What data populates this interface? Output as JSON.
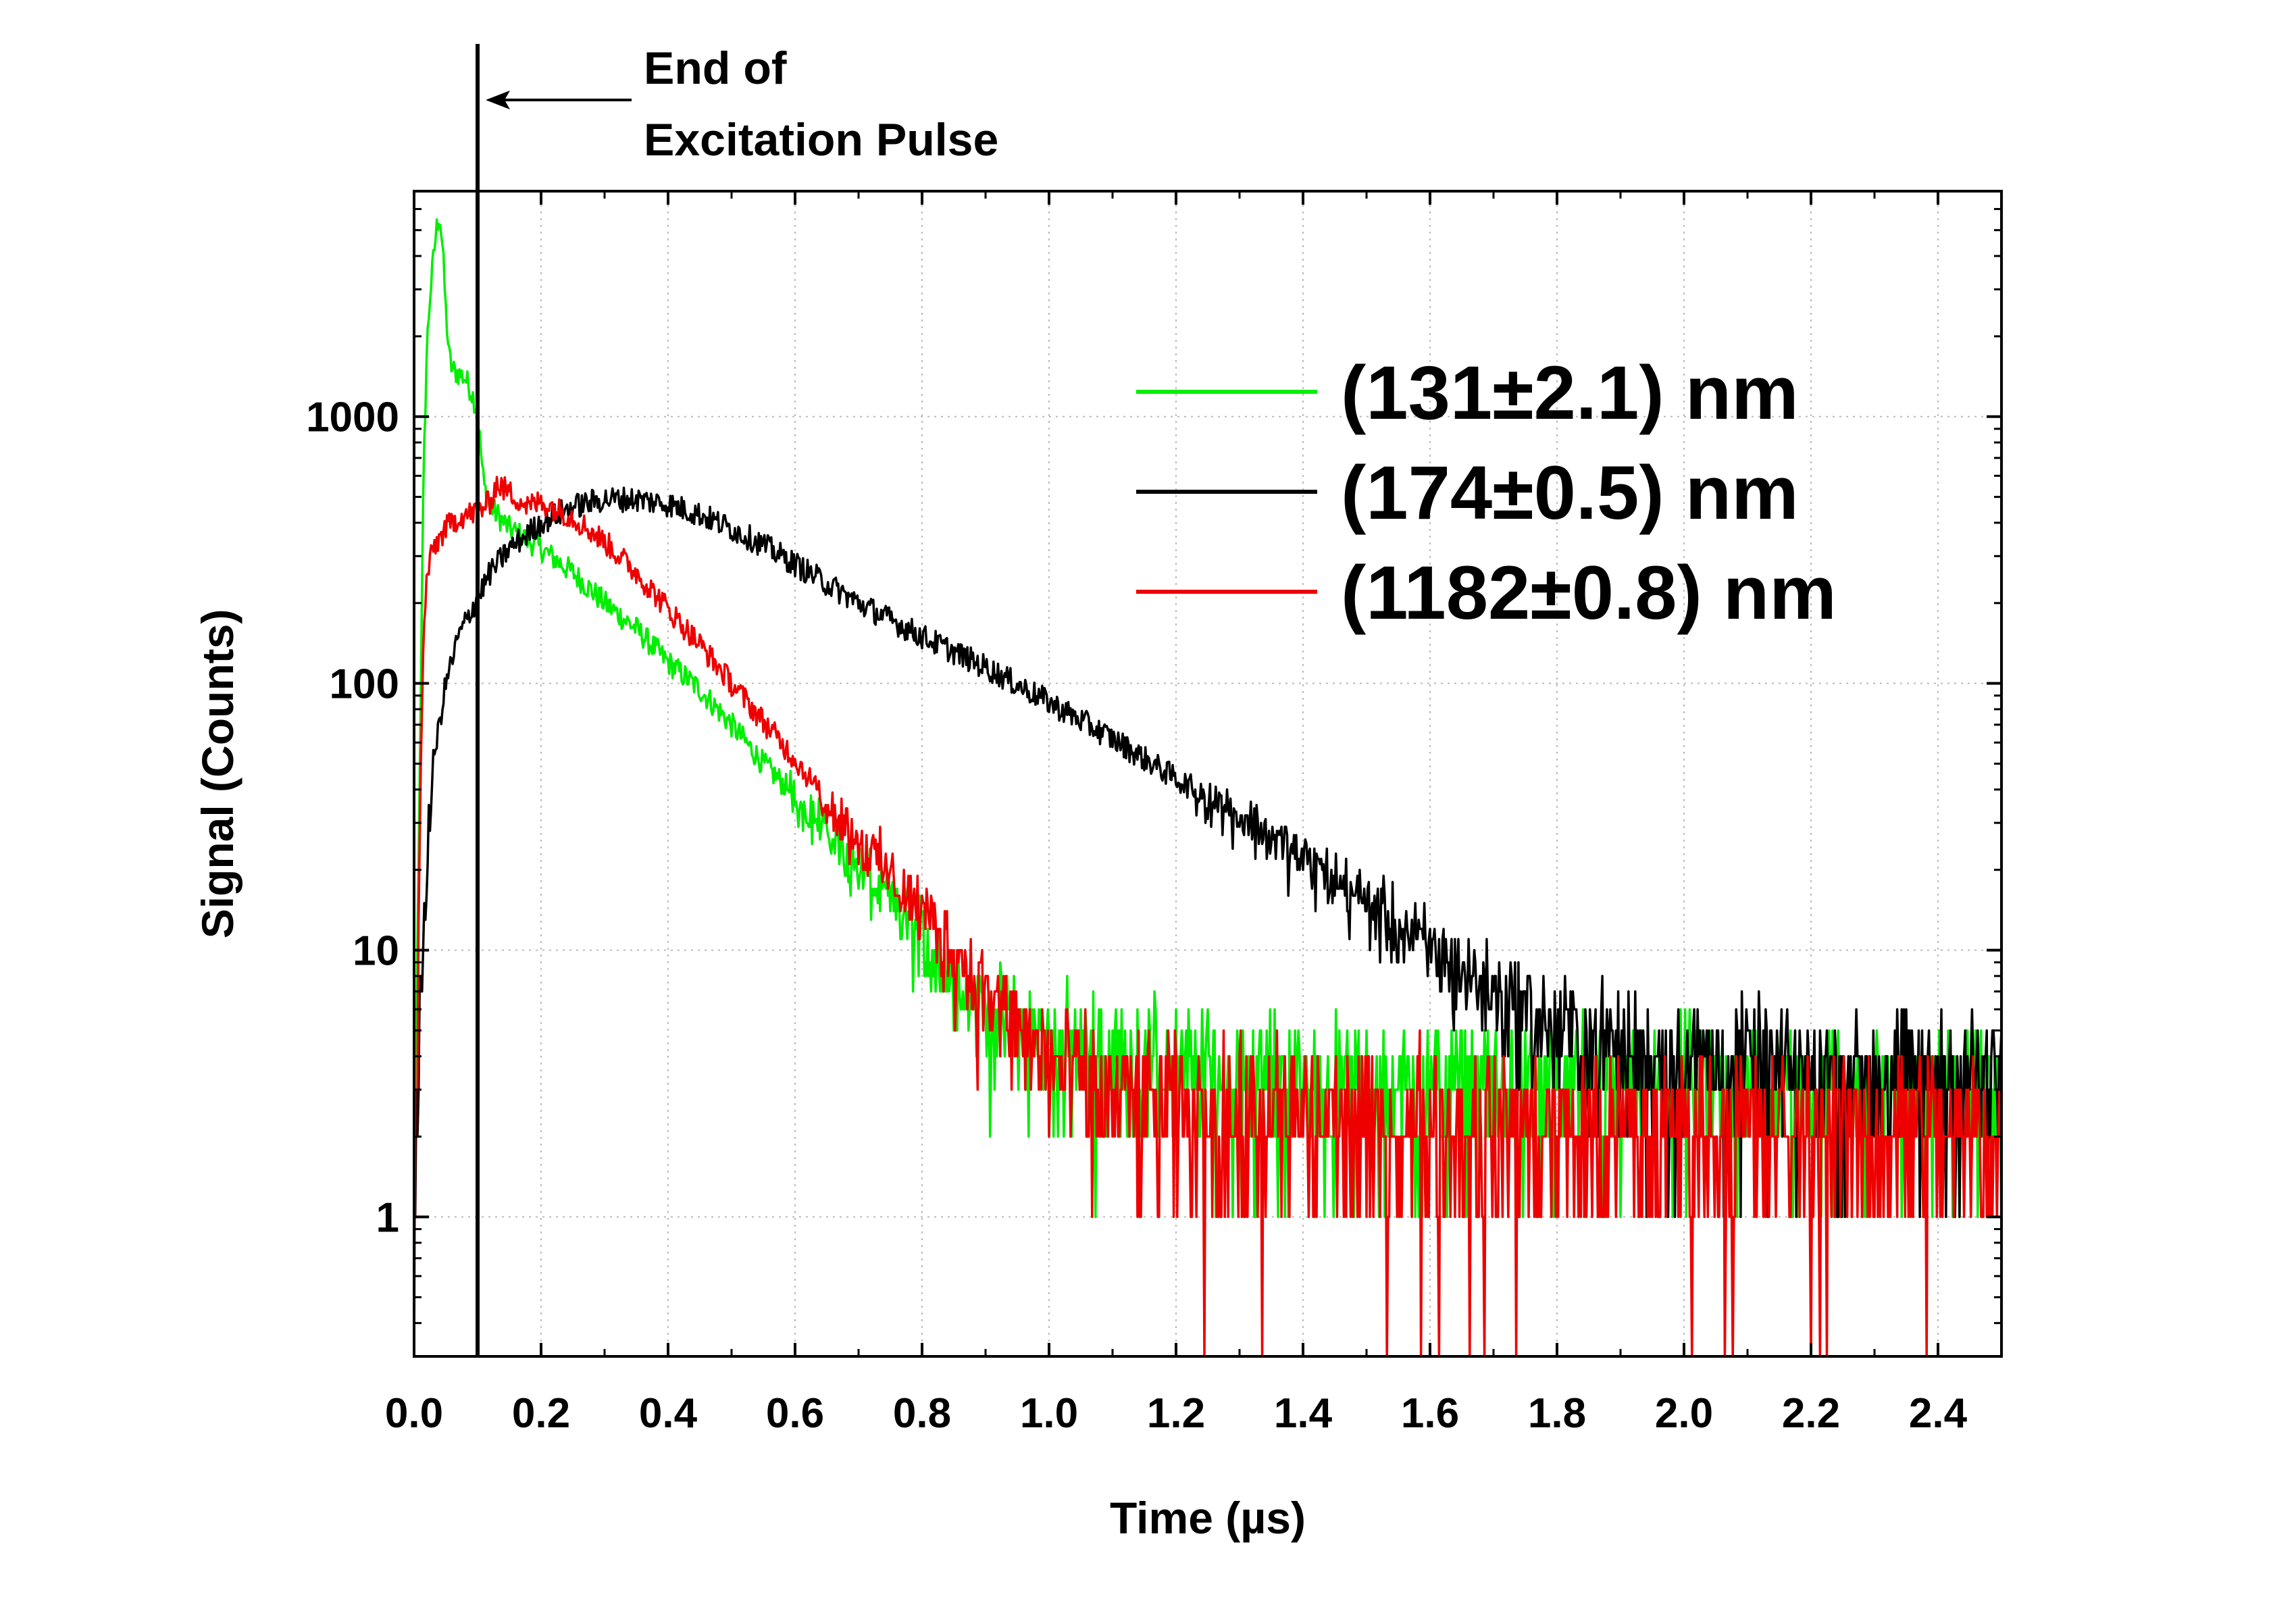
{
  "chart_data": {
    "type": "line",
    "title": "",
    "xlabel": "Time (µs)",
    "ylabel": "Signal (Counts)",
    "xlim": [
      0,
      2.5
    ],
    "ylim": [
      0.3,
      7000
    ],
    "yscale": "log",
    "grid": true,
    "legend_position": "top-right",
    "x_ticks": [
      0.0,
      0.2,
      0.4,
      0.6,
      0.8,
      1.0,
      1.2,
      1.4,
      1.6,
      1.8,
      2.0,
      2.2,
      2.4
    ],
    "x_tick_labels": [
      "0.0",
      "0.2",
      "0.4",
      "0.6",
      "0.8",
      "1.0",
      "1.2",
      "1.4",
      "1.6",
      "1.8",
      "2.0",
      "2.2",
      "2.4"
    ],
    "y_ticks": [
      1,
      10,
      100,
      1000
    ],
    "y_tick_labels": [
      "1",
      "10",
      "100",
      "1000"
    ],
    "annotation": {
      "line1": "End of",
      "line2": "Excitation Pulse",
      "x": 0.1
    },
    "series": [
      {
        "name": "(131±2.1) nm",
        "color": "#00ee00",
        "points": [
          [
            0.0,
            1
          ],
          [
            0.005,
            8
          ],
          [
            0.01,
            80
          ],
          [
            0.015,
            600
          ],
          [
            0.02,
            1800
          ],
          [
            0.025,
            2800
          ],
          [
            0.03,
            3800
          ],
          [
            0.035,
            5000
          ],
          [
            0.04,
            5800
          ],
          [
            0.045,
            4300
          ],
          [
            0.05,
            2500
          ],
          [
            0.055,
            1700
          ],
          [
            0.06,
            1500
          ],
          [
            0.07,
            1450
          ],
          [
            0.08,
            1400
          ],
          [
            0.09,
            1250
          ],
          [
            0.1,
            1050
          ],
          [
            0.105,
            750
          ],
          [
            0.11,
            550
          ],
          [
            0.12,
            460
          ],
          [
            0.15,
            380
          ],
          [
            0.2,
            320
          ],
          [
            0.25,
            260
          ],
          [
            0.3,
            200
          ],
          [
            0.35,
            160
          ],
          [
            0.4,
            120
          ],
          [
            0.45,
            95
          ],
          [
            0.5,
            70
          ],
          [
            0.55,
            50
          ],
          [
            0.6,
            38
          ],
          [
            0.65,
            28
          ],
          [
            0.7,
            20
          ],
          [
            0.75,
            15
          ],
          [
            0.8,
            11
          ],
          [
            0.85,
            8
          ],
          [
            0.9,
            6
          ],
          [
            1.0,
            4.5
          ],
          [
            1.2,
            3.5
          ],
          [
            1.5,
            3
          ],
          [
            2.0,
            3
          ],
          [
            2.5,
            3
          ]
        ]
      },
      {
        "name": "(174±0.5) nm",
        "color": "#000000",
        "points": [
          [
            0.0,
            1
          ],
          [
            0.01,
            6
          ],
          [
            0.02,
            20
          ],
          [
            0.03,
            50
          ],
          [
            0.05,
            100
          ],
          [
            0.07,
            150
          ],
          [
            0.1,
            210
          ],
          [
            0.12,
            260
          ],
          [
            0.15,
            320
          ],
          [
            0.2,
            400
          ],
          [
            0.25,
            460
          ],
          [
            0.3,
            490
          ],
          [
            0.35,
            490
          ],
          [
            0.4,
            470
          ],
          [
            0.45,
            430
          ],
          [
            0.5,
            380
          ],
          [
            0.55,
            330
          ],
          [
            0.6,
            280
          ],
          [
            0.7,
            200
          ],
          [
            0.8,
            150
          ],
          [
            0.9,
            115
          ],
          [
            1.0,
            85
          ],
          [
            1.1,
            62
          ],
          [
            1.2,
            44
          ],
          [
            1.3,
            32
          ],
          [
            1.4,
            22
          ],
          [
            1.5,
            15
          ],
          [
            1.6,
            10
          ],
          [
            1.7,
            7
          ],
          [
            1.8,
            5
          ],
          [
            1.9,
            4.2
          ],
          [
            2.0,
            3.8
          ],
          [
            2.2,
            3.5
          ],
          [
            2.5,
            3.3
          ]
        ]
      },
      {
        "name": "(1182±0.8) nm",
        "color": "#ee0000",
        "points": [
          [
            0.0,
            1
          ],
          [
            0.005,
            5
          ],
          [
            0.01,
            40
          ],
          [
            0.015,
            150
          ],
          [
            0.02,
            250
          ],
          [
            0.03,
            320
          ],
          [
            0.05,
            380
          ],
          [
            0.07,
            420
          ],
          [
            0.1,
            440
          ],
          [
            0.12,
            480
          ],
          [
            0.13,
            560
          ],
          [
            0.15,
            520
          ],
          [
            0.18,
            460
          ],
          [
            0.2,
            480
          ],
          [
            0.25,
            420
          ],
          [
            0.3,
            340
          ],
          [
            0.35,
            260
          ],
          [
            0.4,
            190
          ],
          [
            0.45,
            140
          ],
          [
            0.5,
            100
          ],
          [
            0.55,
            72
          ],
          [
            0.6,
            52
          ],
          [
            0.65,
            36
          ],
          [
            0.7,
            26
          ],
          [
            0.75,
            19
          ],
          [
            0.8,
            14
          ],
          [
            0.85,
            10
          ],
          [
            0.9,
            7
          ],
          [
            0.95,
            5
          ],
          [
            1.0,
            3.8
          ],
          [
            1.1,
            2.8
          ],
          [
            1.3,
            2.3
          ],
          [
            1.6,
            2.2
          ],
          [
            2.0,
            2.1
          ],
          [
            2.5,
            2.1
          ]
        ]
      }
    ]
  }
}
